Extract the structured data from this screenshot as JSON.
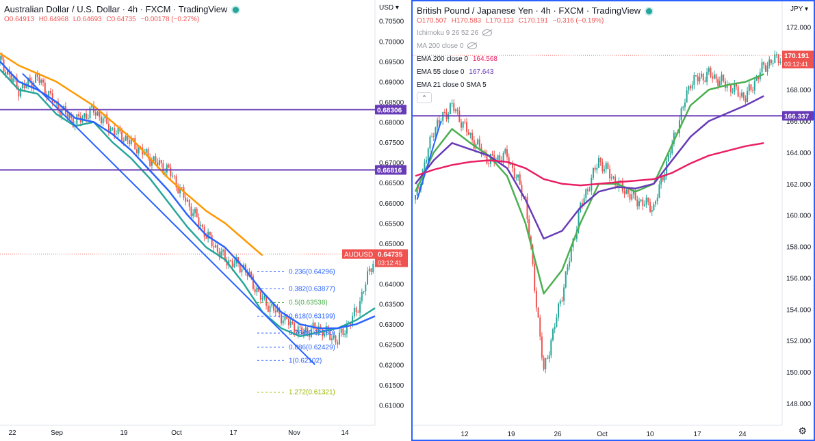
{
  "left": {
    "title": "Australian Dollar / U.S. Dollar · 4h · FXCM · TradingView",
    "ohlc": {
      "o": "O0.64913",
      "h": "H0.64968",
      "l": "L0.64693",
      "c": "C0.64735",
      "chg": "−0.00178 (−0.27%)"
    },
    "currency_label": "USD",
    "price_label": {
      "symbol": "AUDUSD",
      "price": "0.64735",
      "countdown": "03:12:41",
      "color": "#ef5350"
    },
    "levels": [
      {
        "label": "0.68306",
        "value": 0.68306,
        "color": "#673ab7"
      },
      {
        "label": "0.66816",
        "value": 0.66816,
        "color": "#673ab7"
      }
    ],
    "fib": [
      {
        "label": "0.236(0.64296)",
        "value": 0.64296,
        "color": "#2962ff"
      },
      {
        "label": "0.382(0.63877)",
        "value": 0.63877,
        "color": "#2962ff"
      },
      {
        "label": "0.5(0.63538)",
        "value": 0.63538,
        "color": "#4caf50"
      },
      {
        "label": "0.618(0.63199)",
        "value": 0.63199,
        "color": "#2962ff"
      },
      {
        "label": "0.764(0.62780)",
        "value": 0.6278,
        "color": "#2962ff"
      },
      {
        "label": "0.886(0.62429)",
        "value": 0.62429,
        "color": "#2962ff"
      },
      {
        "label": "1(0.62102)",
        "value": 0.62102,
        "color": "#2962ff"
      },
      {
        "label": "1.272(0.61321)",
        "value": 0.61321,
        "color": "#9bb800"
      }
    ],
    "xticks": [
      "22",
      "Sep",
      "19",
      "Oct",
      "17",
      "Nov",
      "14"
    ]
  },
  "right": {
    "title": "British Pound / Japanese Yen · 4h · FXCM · TradingView",
    "ohlc": {
      "o": "O170.507",
      "h": "H170.583",
      "l": "L170.113",
      "c": "C170.191",
      "chg": "−0.316 (−0.19%)"
    },
    "currency_label": "JPY",
    "indicators": [
      {
        "text": "Ichimoku 9 26 52 26",
        "value": "",
        "hidden": true
      },
      {
        "text": "MA 200 close 0",
        "value": "",
        "hidden": true
      },
      {
        "text": "EMA 200 close 0",
        "value": "164.568",
        "color": "#e91e63",
        "hidden": false
      },
      {
        "text": "EMA 55 close 0",
        "value": "167.643",
        "color": "#673ab7",
        "hidden": false
      },
      {
        "text": "EMA 21 close 0 SMA 5",
        "value": "",
        "hidden": false
      }
    ],
    "price_label": {
      "price": "170.191",
      "countdown": "03:12:41",
      "color": "#ef5350"
    },
    "level": {
      "label": "166.337",
      "value": 166.337,
      "color": "#673ab7"
    },
    "xticks": [
      "12",
      "19",
      "26",
      "Oct",
      "10",
      "17",
      "24"
    ],
    "gear_icon": "gear-icon"
  },
  "chart_data": [
    {
      "type": "line",
      "title": "Australian Dollar / U.S. Dollar · 4h · FXCM",
      "ylim": [
        0.605,
        0.7085
      ],
      "yticks": [
        "0.70500",
        "0.70000",
        "0.69500",
        "0.69000",
        "0.68500",
        "0.68000",
        "0.67500",
        "0.67000",
        "0.66500",
        "0.66000",
        "0.65500",
        "0.65000",
        "0.64500",
        "0.64000",
        "0.63500",
        "0.63000",
        "0.62500",
        "0.62000",
        "0.61500",
        "0.61000"
      ],
      "ytick_values": [
        0.705,
        0.7,
        0.695,
        0.69,
        0.685,
        0.68,
        0.675,
        0.67,
        0.665,
        0.66,
        0.655,
        0.65,
        0.645,
        0.64,
        0.635,
        0.63,
        0.625,
        0.62,
        0.615,
        0.61
      ],
      "x_index": [
        0,
        10,
        20,
        30,
        40,
        50,
        60,
        70,
        80,
        90,
        100,
        110,
        120,
        130,
        140,
        150,
        160,
        170,
        180,
        190,
        200
      ],
      "series": [
        {
          "color": "#ef5350",
          "values": [
            0.695,
            0.688,
            0.691,
            0.684,
            0.68,
            0.683,
            0.678,
            0.675,
            0.671,
            0.668,
            0.66,
            0.652,
            0.646,
            0.644,
            0.636,
            0.632,
            0.628,
            0.629,
            0.626,
            0.633,
            0.6473
          ]
        },
        {
          "color": "#ff9800",
          "values": [
            0.697,
            0.694,
            0.692,
            0.69,
            0.687,
            0.684,
            0.68,
            0.676,
            0.671,
            0.666,
            0.662,
            0.658,
            0.655,
            0.651,
            0.647
          ]
        },
        {
          "color": "#26a69a",
          "values": [
            0.693,
            0.688,
            0.687,
            0.682,
            0.679,
            0.68,
            0.675,
            0.671,
            0.666,
            0.66,
            0.654,
            0.649,
            0.646,
            0.64,
            0.633,
            0.629,
            0.627,
            0.628,
            0.629,
            0.631,
            0.634
          ]
        },
        {
          "color": "#2962ff",
          "values": [
            0.695,
            0.69,
            0.688,
            0.685,
            0.681,
            0.68,
            0.677,
            0.673,
            0.668,
            0.663,
            0.657,
            0.652,
            0.649,
            0.644,
            0.638,
            0.633,
            0.63,
            0.629,
            0.629,
            0.63,
            0.632
          ]
        }
      ],
      "trendline": {
        "from": [
          12,
          0.692
        ],
        "to": [
          168,
          0.62
        ]
      }
    },
    {
      "type": "line",
      "title": "British Pound / Japanese Yen · 4h · FXCM",
      "ylim": [
        146.6,
        173.2
      ],
      "yticks": [
        "172.000",
        "170.000",
        "168.000",
        "166.000",
        "164.000",
        "162.000",
        "160.000",
        "158.000",
        "156.000",
        "154.000",
        "152.000",
        "150.000",
        "148.000"
      ],
      "ytick_values": [
        172,
        170,
        168,
        166,
        164,
        162,
        160,
        158,
        156,
        154,
        152,
        150,
        148
      ],
      "x_index": [
        0,
        10,
        20,
        30,
        40,
        50,
        60,
        70,
        80,
        90,
        100,
        110,
        120,
        130,
        140,
        150,
        160,
        170,
        180,
        190,
        200
      ],
      "series": [
        {
          "name": "price",
          "color": "#ef5350",
          "values": [
            161.0,
            165.5,
            167.0,
            165.0,
            163.5,
            163.8,
            161.0,
            150.0,
            155.0,
            160.5,
            163.5,
            162.0,
            161.0,
            160.5,
            164.5,
            168.5,
            169.0,
            168.3,
            167.5,
            169.5,
            170.2
          ]
        },
        {
          "name": "EMA 21",
          "color": "#4caf50",
          "values": [
            161.5,
            164.0,
            165.5,
            164.6,
            163.8,
            162.5,
            159.5,
            155.0,
            156.5,
            159.5,
            162.0,
            162.0,
            161.5,
            162.0,
            164.5,
            167.0,
            168.0,
            168.3,
            168.5,
            169.0
          ]
        },
        {
          "name": "EMA 55",
          "color": "#673ab7",
          "values": [
            162.0,
            163.5,
            164.6,
            164.2,
            163.8,
            163.0,
            161.0,
            158.5,
            159.0,
            160.5,
            161.5,
            161.8,
            161.7,
            162.0,
            163.5,
            165.0,
            166.0,
            166.5,
            167.0,
            167.6
          ]
        },
        {
          "name": "EMA 200",
          "color": "#e91e63",
          "values": [
            162.5,
            162.9,
            163.2,
            163.4,
            163.5,
            163.4,
            163.0,
            162.3,
            162.0,
            161.9,
            162.0,
            162.1,
            162.2,
            162.3,
            162.7,
            163.3,
            163.8,
            164.1,
            164.4,
            164.6
          ]
        }
      ],
      "trendline": {
        "from": [
          1,
          161.0
        ],
        "to": [
          14,
          166.0
        ]
      }
    }
  ]
}
